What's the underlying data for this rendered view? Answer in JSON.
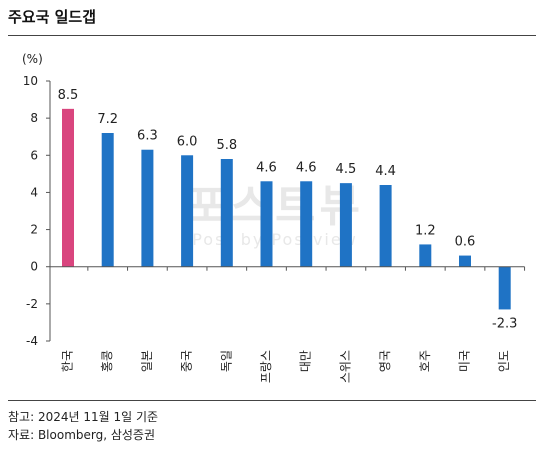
{
  "title": "주요국 일드갭",
  "chart_data": {
    "type": "bar",
    "title": "주요국 일드갭",
    "ylabel": "(%)",
    "xlabel": "",
    "categories": [
      "한국",
      "홍콩",
      "일본",
      "중국",
      "독일",
      "프랑스",
      "대만",
      "스위스",
      "영국",
      "호주",
      "미국",
      "인도"
    ],
    "values": [
      8.5,
      7.2,
      6.3,
      6.0,
      5.8,
      4.6,
      4.6,
      4.5,
      4.4,
      1.2,
      0.6,
      -2.3
    ],
    "data_labels": [
      "8.5",
      "7.2",
      "6.3",
      "6.0",
      "5.8",
      "4.6",
      "4.6",
      "4.5",
      "4.4",
      "1.2",
      "0.6",
      "-2.3"
    ],
    "ylim": [
      -4,
      10
    ],
    "yticks": [
      -4,
      -2,
      0,
      2,
      4,
      6,
      8,
      10
    ],
    "ytick_labels": [
      "-4",
      "-2",
      "0",
      "2",
      "4",
      "6",
      "8",
      "10"
    ],
    "grid": false,
    "legend": "none",
    "colors": {
      "highlight": "#d9457e",
      "bar": "#1f73c5",
      "axis": "#555555"
    }
  },
  "notes": {
    "reference": "참고: 2024년 11월 1일 기준",
    "source": "자료: Bloomberg, 삼성증권"
  },
  "watermark": {
    "line1": "포스트뷰",
    "line2": "Post by Postview"
  }
}
